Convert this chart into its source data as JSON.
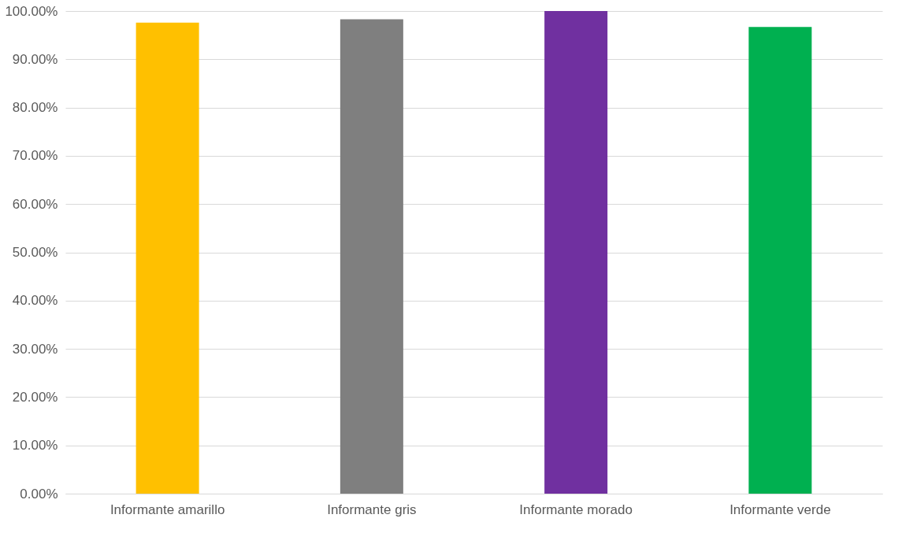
{
  "chart_data": {
    "type": "bar",
    "categories": [
      "Informante amarillo",
      "Informante gris",
      "Informante morado",
      "Informante verde"
    ],
    "values": [
      97.6,
      98.3,
      100,
      96.7
    ],
    "colors": [
      "#ffc000",
      "#7f7f7f",
      "#7030a0",
      "#00b050"
    ],
    "ylim": [
      0,
      100
    ],
    "yticks": [
      {
        "value": 0,
        "label": "0.00%"
      },
      {
        "value": 10,
        "label": "10.00%"
      },
      {
        "value": 20,
        "label": "20.00%"
      },
      {
        "value": 30,
        "label": "30.00%"
      },
      {
        "value": 40,
        "label": "40.00%"
      },
      {
        "value": 50,
        "label": "50.00%"
      },
      {
        "value": 60,
        "label": "60.00%"
      },
      {
        "value": 70,
        "label": "70.00%"
      },
      {
        "value": 80,
        "label": "80.00%"
      },
      {
        "value": 90,
        "label": "90.00%"
      },
      {
        "value": 100,
        "label": "100.00%"
      }
    ],
    "grid": "y"
  }
}
